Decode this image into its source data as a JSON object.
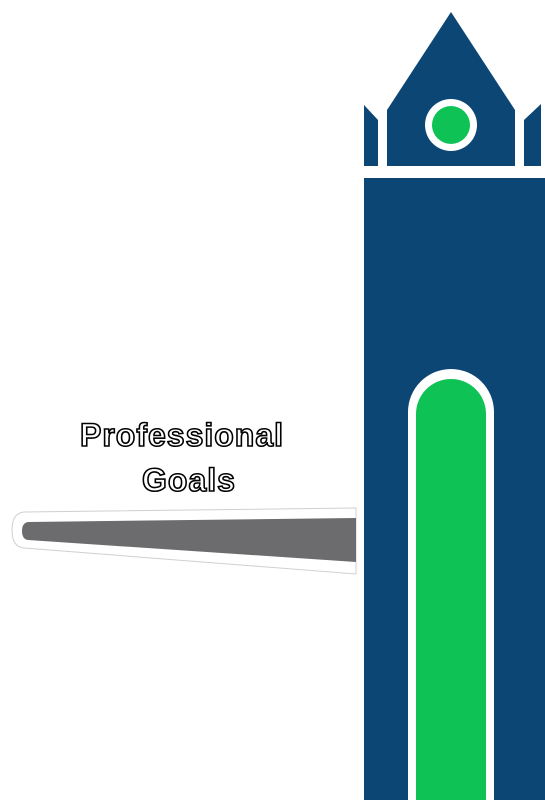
{
  "title": {
    "line1": "Professional",
    "line2": "Goals"
  },
  "colors": {
    "background": "#ffffff",
    "tower_blue": "#0c4675",
    "accent_green": "#0fc256",
    "outline_white": "#ffffff",
    "pointer_gray": "#6c6b6e",
    "text_fill": "#ffffff",
    "text_outline": "#000000"
  },
  "icons": {
    "tower": "clock-tower-illustration",
    "window": "arched-window",
    "clock": "round-clock-face",
    "pointer": "tapered-pointer-bar"
  }
}
